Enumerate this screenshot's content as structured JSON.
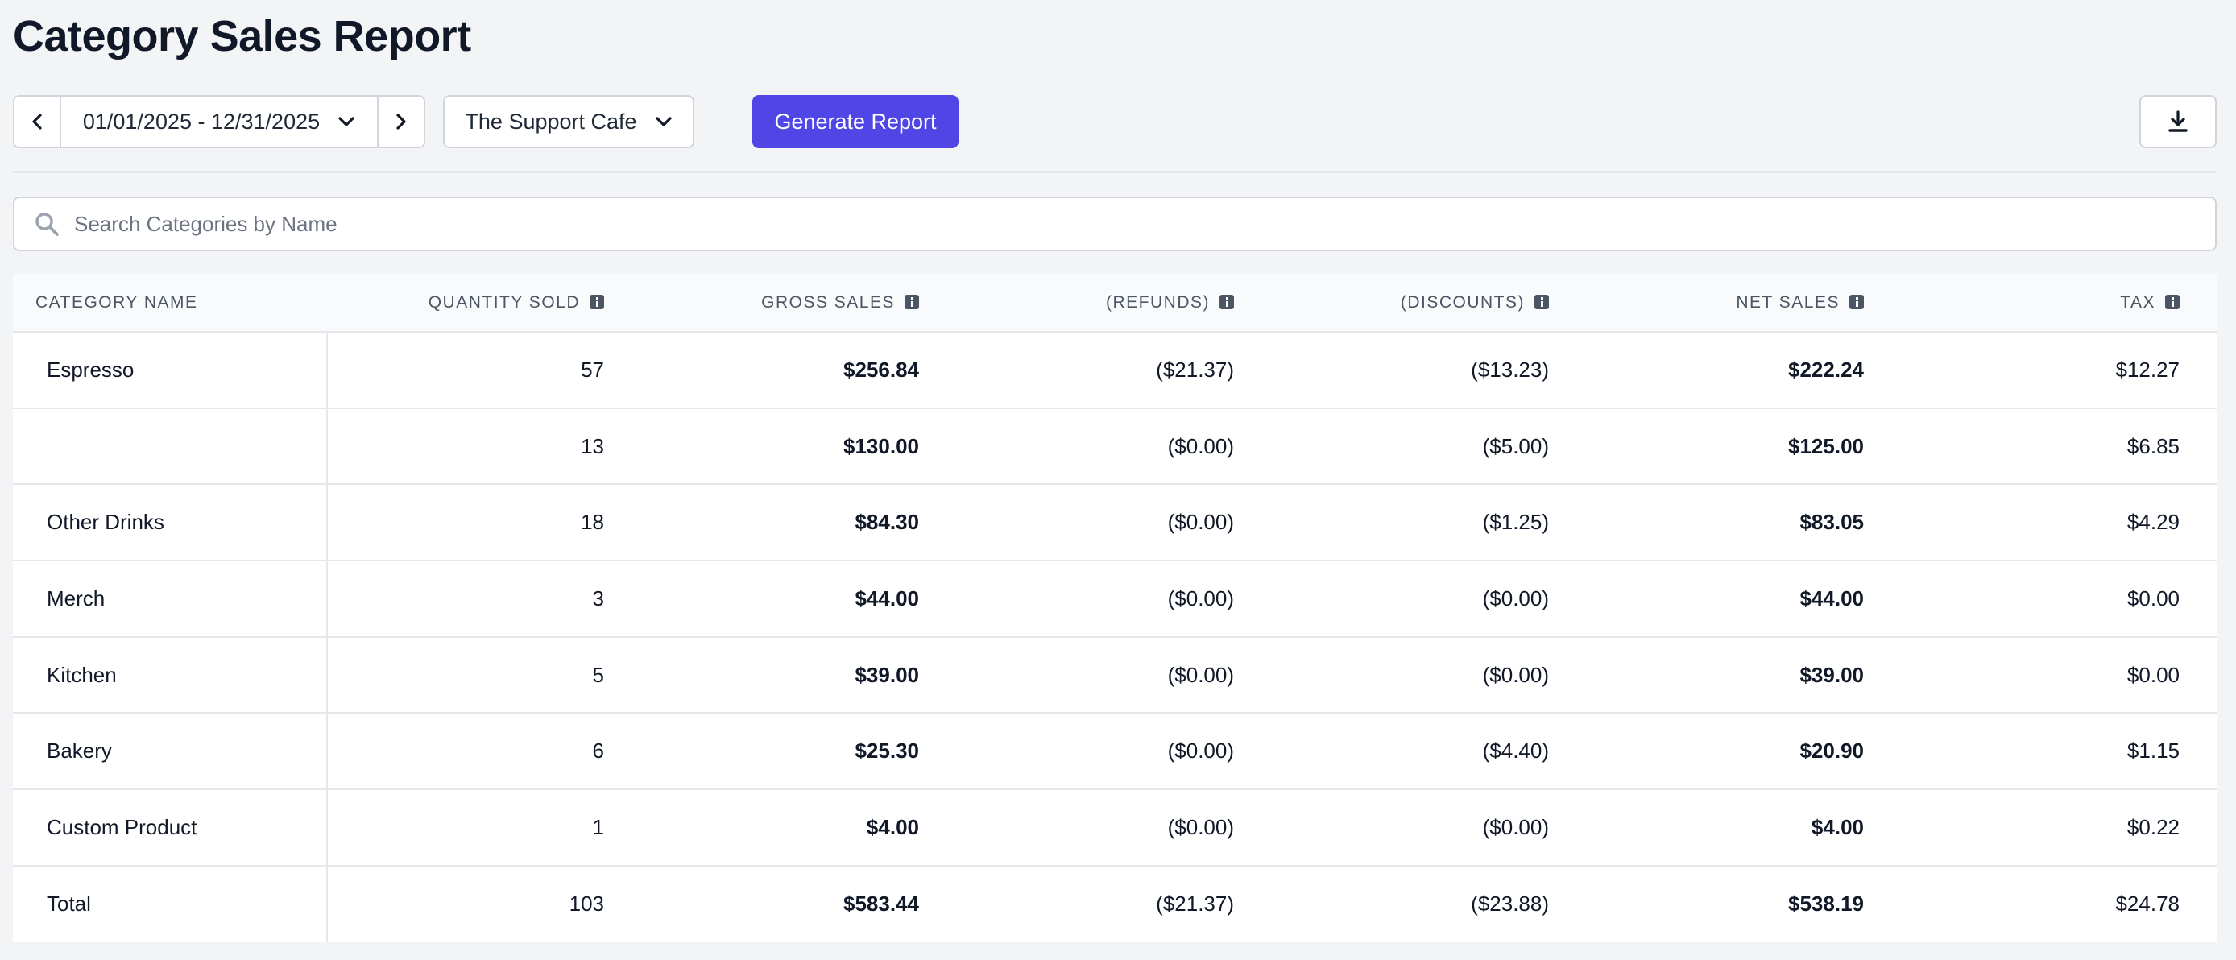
{
  "page": {
    "title": "Category Sales Report"
  },
  "toolbar": {
    "date_range": "01/01/2025 - 12/31/2025",
    "location": "The Support Cafe",
    "generate_label": "Generate Report"
  },
  "search": {
    "placeholder": "Search Categories by Name",
    "value": ""
  },
  "table": {
    "headers": {
      "category": "CATEGORY NAME",
      "quantity": "QUANTITY SOLD",
      "gross": "GROSS SALES",
      "refunds": "(REFUNDS)",
      "discounts": "(DISCOUNTS)",
      "net": "NET SALES",
      "tax": "TAX"
    },
    "rows": [
      {
        "name": "Espresso",
        "quantity": "57",
        "gross": "$256.84",
        "refunds": "($21.37)",
        "discounts": "($13.23)",
        "net": "$222.24",
        "tax": "$12.27"
      },
      {
        "name": "",
        "quantity": "13",
        "gross": "$130.00",
        "refunds": "($0.00)",
        "discounts": "($5.00)",
        "net": "$125.00",
        "tax": "$6.85"
      },
      {
        "name": "Other Drinks",
        "quantity": "18",
        "gross": "$84.30",
        "refunds": "($0.00)",
        "discounts": "($1.25)",
        "net": "$83.05",
        "tax": "$4.29"
      },
      {
        "name": "Merch",
        "quantity": "3",
        "gross": "$44.00",
        "refunds": "($0.00)",
        "discounts": "($0.00)",
        "net": "$44.00",
        "tax": "$0.00"
      },
      {
        "name": "Kitchen",
        "quantity": "5",
        "gross": "$39.00",
        "refunds": "($0.00)",
        "discounts": "($0.00)",
        "net": "$39.00",
        "tax": "$0.00"
      },
      {
        "name": "Bakery",
        "quantity": "6",
        "gross": "$25.30",
        "refunds": "($0.00)",
        "discounts": "($4.40)",
        "net": "$20.90",
        "tax": "$1.15"
      },
      {
        "name": "Custom Product",
        "quantity": "1",
        "gross": "$4.00",
        "refunds": "($0.00)",
        "discounts": "($0.00)",
        "net": "$4.00",
        "tax": "$0.22"
      }
    ],
    "total": {
      "name": "Total",
      "quantity": "103",
      "gross": "$583.44",
      "refunds": "($21.37)",
      "discounts": "($23.88)",
      "net": "$538.19",
      "tax": "$24.78"
    }
  },
  "colors": {
    "accent": "#4f46e5",
    "background": "#f3f4f6",
    "border": "#d1d5db"
  },
  "icons": {
    "prev": "chevron-left-icon",
    "next": "chevron-right-icon",
    "dropdown": "chevron-down-icon",
    "download": "download-icon",
    "search": "search-icon",
    "info": "info-icon"
  }
}
